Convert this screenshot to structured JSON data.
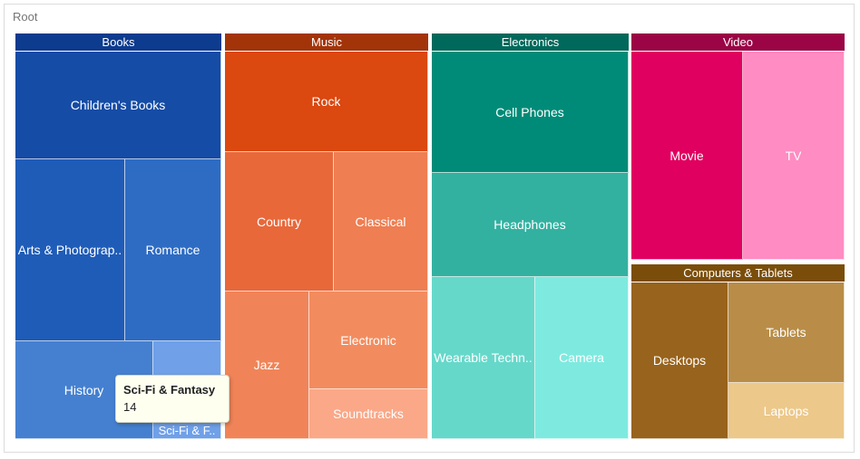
{
  "breadcrumb": "Root",
  "chart_data": {
    "type": "treemap",
    "title": "",
    "groups": [
      {
        "name": "Books",
        "header_color": "#0d3b8e",
        "items": [
          {
            "name": "Children's Books",
            "label": "Children's Books",
            "color": "#154ca6"
          },
          {
            "name": "Arts & Photography",
            "label": "Arts & Photograp..",
            "color": "#1f5cb8"
          },
          {
            "name": "Romance",
            "label": "Romance",
            "color": "#2e6cc4"
          },
          {
            "name": "History",
            "label": "History",
            "color": "#4580d0"
          },
          {
            "name": "Sci-Fi & Fantasy",
            "label": "Sci-Fi & F..",
            "color": "#6fa0e8"
          }
        ]
      },
      {
        "name": "Music",
        "header_color": "#a3340a",
        "items": [
          {
            "name": "Rock",
            "label": "Rock",
            "color": "#db4810"
          },
          {
            "name": "Country",
            "label": "Country",
            "color": "#e8683a"
          },
          {
            "name": "Classical",
            "label": "Classical",
            "color": "#ef7e52"
          },
          {
            "name": "Jazz",
            "label": "Jazz",
            "color": "#f08458"
          },
          {
            "name": "Electronic",
            "label": "Electronic",
            "color": "#f28c5f"
          },
          {
            "name": "Soundtracks",
            "label": "Soundtracks",
            "color": "#faa888"
          }
        ]
      },
      {
        "name": "Electronics",
        "header_color": "#00695c",
        "items": [
          {
            "name": "Cell Phones",
            "label": "Cell Phones",
            "color": "#008b78"
          },
          {
            "name": "Headphones",
            "label": "Headphones",
            "color": "#33b1a0"
          },
          {
            "name": "Wearable Technology",
            "label": "Wearable Techn..",
            "color": "#66d8ca"
          },
          {
            "name": "Camera",
            "label": "Camera",
            "color": "#7eeadf"
          }
        ]
      },
      {
        "name": "Video",
        "header_color": "#9b0545",
        "items": [
          {
            "name": "Movie",
            "label": "Movie",
            "color": "#e00060"
          },
          {
            "name": "TV",
            "label": "TV",
            "color": "#ff8cc2"
          }
        ]
      },
      {
        "name": "Computers & Tablets",
        "header_color": "#7a4e0a",
        "items": [
          {
            "name": "Desktops",
            "label": "Desktops",
            "color": "#98631c"
          },
          {
            "name": "Tablets",
            "label": "Tablets",
            "color": "#b98d48"
          },
          {
            "name": "Laptops",
            "label": "Laptops",
            "color": "#ecc88a"
          }
        ]
      }
    ],
    "tooltip": {
      "name": "Sci-Fi & Fantasy",
      "value": 14
    }
  }
}
